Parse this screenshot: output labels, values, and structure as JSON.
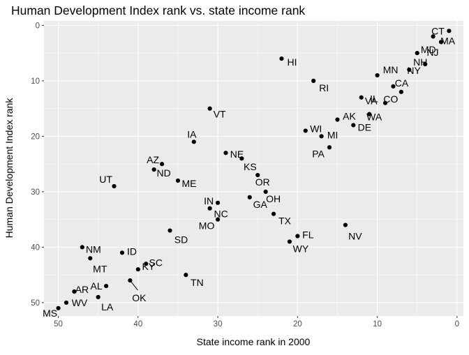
{
  "chart_data": {
    "type": "scatter",
    "title": "Human Development Index rank vs. state income rank",
    "xlabel": "State income rank in 2000",
    "ylabel": "Human Development Index rank",
    "x_reversed": true,
    "y_reversed": true,
    "xlim": [
      51.8,
      -0.8
    ],
    "ylim": [
      -0.8,
      52.4
    ],
    "x_ticks": [
      50,
      40,
      30,
      20,
      10,
      0
    ],
    "y_ticks": [
      0,
      10,
      20,
      30,
      40,
      50
    ],
    "grid": true,
    "legend": "none",
    "points": [
      {
        "label": "CT",
        "x": 1,
        "y": 1
      },
      {
        "label": "MA",
        "x": 3,
        "y": 2
      },
      {
        "label": "NJ",
        "x": 2,
        "y": 3
      },
      {
        "label": "MD",
        "x": 5,
        "y": 5
      },
      {
        "label": "HI",
        "x": 22,
        "y": 6
      },
      {
        "label": "NY",
        "x": 4,
        "y": 7
      },
      {
        "label": "NH",
        "x": 6,
        "y": 8
      },
      {
        "label": "MN",
        "x": 10,
        "y": 9
      },
      {
        "label": "RI",
        "x": 18,
        "y": 10
      },
      {
        "label": "CA",
        "x": 8,
        "y": 11
      },
      {
        "label": "CO",
        "x": 7,
        "y": 12
      },
      {
        "label": "VA",
        "x": 12,
        "y": 13
      },
      {
        "label": "IL",
        "x": 9,
        "y": 14
      },
      {
        "label": "VT",
        "x": 31,
        "y": 15
      },
      {
        "label": "WA",
        "x": 11,
        "y": 16
      },
      {
        "label": "AK",
        "x": 15,
        "y": 17
      },
      {
        "label": "DE",
        "x": 13,
        "y": 18
      },
      {
        "label": "WI",
        "x": 19,
        "y": 19
      },
      {
        "label": "MI",
        "x": 17,
        "y": 20
      },
      {
        "label": "IA",
        "x": 33,
        "y": 21
      },
      {
        "label": "PA",
        "x": 16,
        "y": 22
      },
      {
        "label": "NE",
        "x": 29,
        "y": 23
      },
      {
        "label": "KS",
        "x": 27,
        "y": 24
      },
      {
        "label": "AZ",
        "x": 37,
        "y": 25
      },
      {
        "label": "ND",
        "x": 38,
        "y": 26
      },
      {
        "label": "OR",
        "x": 25,
        "y": 27
      },
      {
        "label": "ME",
        "x": 35,
        "y": 28
      },
      {
        "label": "UT",
        "x": 43,
        "y": 29
      },
      {
        "label": "OH",
        "x": 24,
        "y": 30
      },
      {
        "label": "GA",
        "x": 26,
        "y": 31
      },
      {
        "label": "IN",
        "x": 30,
        "y": 32
      },
      {
        "label": "NC",
        "x": 31,
        "y": 33
      },
      {
        "label": "TX",
        "x": 23,
        "y": 34
      },
      {
        "label": "MO",
        "x": 30,
        "y": 35
      },
      {
        "label": "NV",
        "x": 14,
        "y": 36
      },
      {
        "label": "SD",
        "x": 36,
        "y": 37
      },
      {
        "label": "FL",
        "x": 20,
        "y": 38
      },
      {
        "label": "WY",
        "x": 21,
        "y": 39
      },
      {
        "label": "NM",
        "x": 47,
        "y": 40
      },
      {
        "label": "ID",
        "x": 42,
        "y": 41
      },
      {
        "label": "MT",
        "x": 46,
        "y": 42
      },
      {
        "label": "SC",
        "x": 39,
        "y": 43
      },
      {
        "label": "KY",
        "x": 40,
        "y": 44
      },
      {
        "label": "TN",
        "x": 34,
        "y": 45
      },
      {
        "label": "OK",
        "x": 41,
        "y": 46
      },
      {
        "label": "AL",
        "x": 44,
        "y": 47
      },
      {
        "label": "AR",
        "x": 48,
        "y": 48
      },
      {
        "label": "LA",
        "x": 45,
        "y": 49
      },
      {
        "label": "WV",
        "x": 49,
        "y": 50
      },
      {
        "label": "MS",
        "x": 50,
        "y": 51
      }
    ]
  },
  "colors": {
    "panel": "#ebebeb",
    "grid_major": "#ffffff",
    "point": "#000000",
    "tick": "#4d4d4d"
  }
}
